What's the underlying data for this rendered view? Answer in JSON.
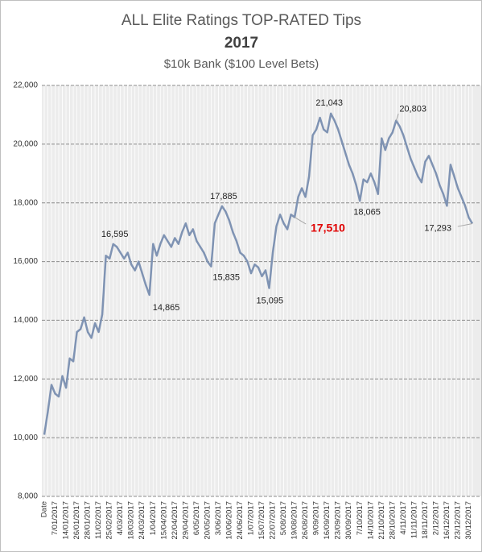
{
  "chart_data": {
    "type": "line",
    "title": "ALL Elite Ratings TOP-RATED Tips",
    "subtitle": "2017",
    "subtitle2": "$10k Bank ($100 Level Bets)",
    "categories": [
      "Date",
      null,
      null,
      "7/01/2017",
      null,
      null,
      "14/01/2017",
      null,
      null,
      "26/01/2017",
      null,
      null,
      "28/01/2017",
      null,
      null,
      "11/02/2017",
      null,
      null,
      "25/02/2017",
      null,
      null,
      "4/03/2017",
      null,
      null,
      "18/03/2017",
      null,
      null,
      "24/03/2017",
      null,
      null,
      "1/04/2017",
      null,
      null,
      "15/04/2017",
      null,
      null,
      "22/04/2017",
      null,
      null,
      "29/04/2017",
      null,
      null,
      "6/05/2017",
      null,
      null,
      "20/05/2017",
      null,
      null,
      "3/06/2017",
      null,
      null,
      "10/06/2017",
      null,
      null,
      "24/06/2017",
      null,
      null,
      "1/07/2017",
      null,
      null,
      "15/07/2017",
      null,
      null,
      "22/07/2017",
      null,
      null,
      "5/08/2017",
      null,
      null,
      "19/08/2017",
      null,
      null,
      "26/08/2017",
      null,
      null,
      "9/09/2017",
      null,
      null,
      "16/09/2017",
      null,
      null,
      "23/09/2017",
      null,
      null,
      "30/09/2017",
      null,
      null,
      "7/10/2017",
      null,
      null,
      "14/10/2017",
      null,
      null,
      "21/10/2017",
      null,
      null,
      "28/10/2017",
      null,
      null,
      "4/11/2017",
      null,
      null,
      "11/11/2017",
      null,
      null,
      "18/11/2017",
      null,
      null,
      "2/12/2017",
      null,
      null,
      "16/12/2017",
      null,
      null,
      "23/12/2017",
      null,
      null,
      "30/12/2017",
      null
    ],
    "series": [
      {
        "name": "Bank",
        "color": "#7f93b3",
        "values": [
          10100,
          10900,
          11800,
          11500,
          11400,
          12100,
          11700,
          12700,
          12600,
          13600,
          13700,
          14100,
          13600,
          13400,
          13900,
          13600,
          14200,
          16200,
          16100,
          16595,
          16500,
          16300,
          16100,
          16300,
          15900,
          15700,
          16000,
          15600,
          15200,
          14865,
          16600,
          16200,
          16600,
          16900,
          16700,
          16500,
          16800,
          16600,
          17000,
          17300,
          16900,
          17100,
          16700,
          16500,
          16300,
          16000,
          15835,
          17300,
          17600,
          17885,
          17700,
          17400,
          17000,
          16700,
          16300,
          16200,
          16000,
          15600,
          15900,
          15800,
          15500,
          15700,
          15095,
          16300,
          17200,
          17600,
          17300,
          17100,
          17600,
          17510,
          18200,
          18500,
          18200,
          18900,
          20300,
          20500,
          20900,
          20500,
          20400,
          21043,
          20800,
          20500,
          20100,
          19700,
          19300,
          19000,
          18600,
          18065,
          18800,
          18700,
          19000,
          18700,
          18300,
          20200,
          19800,
          20200,
          20400,
          20803,
          20600,
          20300,
          19900,
          19500,
          19200,
          18900,
          18700,
          19400,
          19600,
          19300,
          19000,
          18600,
          18300,
          17900,
          19300,
          18900,
          18500,
          18200,
          17900,
          17500,
          17293
        ],
        "value_labels": [
          null,
          null,
          null,
          null,
          null,
          null,
          null,
          null,
          null,
          null,
          null,
          null,
          null,
          null,
          null,
          null,
          null,
          null,
          null,
          "16,595",
          null,
          null,
          null,
          null,
          null,
          null,
          null,
          null,
          null,
          "14,865",
          null,
          null,
          null,
          null,
          null,
          null,
          null,
          null,
          null,
          null,
          null,
          null,
          null,
          null,
          null,
          null,
          "15,835",
          null,
          null,
          "17,885",
          null,
          null,
          null,
          null,
          null,
          null,
          null,
          null,
          null,
          null,
          null,
          null,
          "15,095",
          null,
          null,
          null,
          null,
          null,
          null,
          "17,510",
          null,
          null,
          null,
          null,
          null,
          null,
          null,
          null,
          null,
          "21,043",
          null,
          null,
          null,
          null,
          null,
          null,
          null,
          "18,065",
          null,
          null,
          null,
          null,
          null,
          null,
          null,
          null,
          null,
          "20,803",
          null,
          null,
          null,
          null,
          null,
          null,
          null,
          null,
          null,
          null,
          null,
          null,
          null,
          null,
          null,
          null,
          null,
          null,
          null,
          null,
          "17,293"
        ]
      }
    ],
    "highlight_color": "#e00000",
    "highlight_label": 69,
    "ylim": [
      8000,
      22000
    ],
    "yticks": [
      {
        "value": 8000,
        "label": "8,000"
      },
      {
        "value": 10000,
        "label": "10,000"
      },
      {
        "value": 12000,
        "label": "12,000"
      },
      {
        "value": 14000,
        "label": "14,000"
      },
      {
        "value": 16000,
        "label": "16,000"
      },
      {
        "value": 18000,
        "label": "18,000"
      },
      {
        "value": 20000,
        "label": "20,000"
      },
      {
        "value": 22000,
        "label": "22,000"
      }
    ],
    "grid": true
  }
}
